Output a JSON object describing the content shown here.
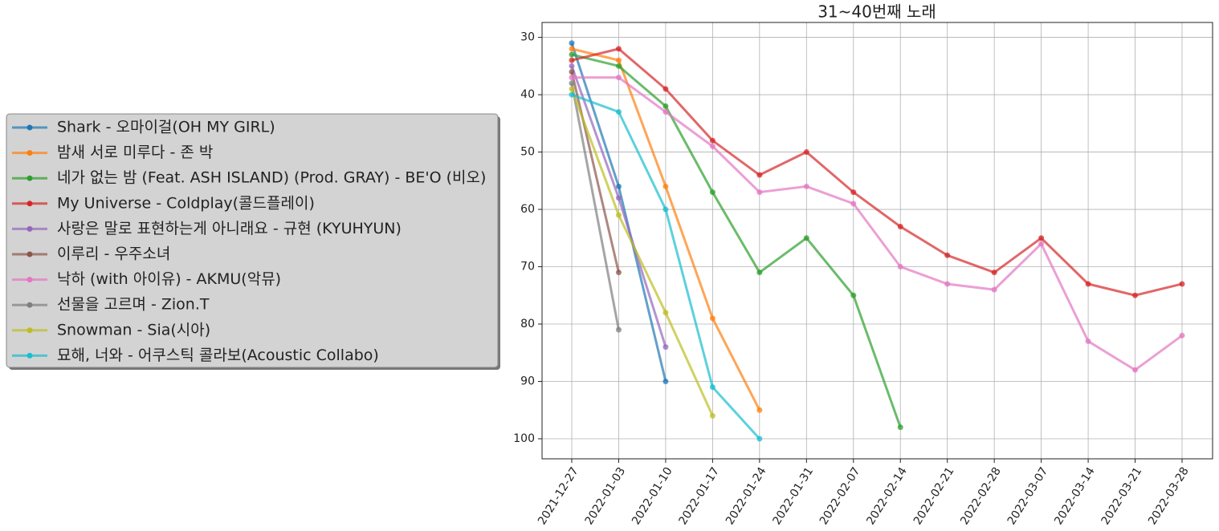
{
  "chart_data": {
    "type": "line",
    "title": "31~40번째 노래",
    "categories": [
      "2021-12-27",
      "2022-01-03",
      "2022-01-10",
      "2022-01-17",
      "2022-01-24",
      "2022-01-31",
      "2022-02-07",
      "2022-02-14",
      "2022-02-21",
      "2022-02-28",
      "2022-03-07",
      "2022-03-14",
      "2022-03-21",
      "2022-03-28"
    ],
    "series": [
      {
        "name": "Shark - 오마이걸(OH MY GIRL)",
        "color": "#1f77b4",
        "values": [
          31,
          56,
          90,
          null,
          null,
          null,
          null,
          null,
          null,
          null,
          null,
          null,
          null,
          null
        ]
      },
      {
        "name": "밤새 서로 미루다 - 존 박",
        "color": "#ff7f0e",
        "values": [
          32,
          34,
          56,
          79,
          95,
          null,
          null,
          null,
          null,
          null,
          null,
          null,
          null,
          null
        ]
      },
      {
        "name": "네가 없는 밤 (Feat. ASH ISLAND) (Prod. GRAY) - BE'O (비오)",
        "color": "#2ca02c",
        "values": [
          33,
          35,
          42,
          57,
          71,
          65,
          75,
          98,
          null,
          null,
          null,
          null,
          null,
          null
        ]
      },
      {
        "name": "My Universe - Coldplay(콜드플레이)",
        "color": "#d62728",
        "values": [
          34,
          32,
          39,
          48,
          54,
          50,
          57,
          63,
          68,
          71,
          65,
          73,
          75,
          73
        ]
      },
      {
        "name": "사랑은 말로 표현하는게 아니래요 - 규현 (KYUHYUN)",
        "color": "#9467bd",
        "values": [
          35,
          58,
          84,
          null,
          null,
          null,
          null,
          null,
          null,
          null,
          null,
          null,
          null,
          null
        ]
      },
      {
        "name": "이루리 - 우주소녀",
        "color": "#8c564b",
        "values": [
          36,
          71,
          null,
          null,
          null,
          null,
          null,
          null,
          null,
          null,
          null,
          null,
          null,
          null
        ]
      },
      {
        "name": "낙하 (with 아이유) - AKMU(악뮤)",
        "color": "#e377c2",
        "values": [
          37,
          37,
          43,
          49,
          57,
          56,
          59,
          70,
          73,
          74,
          66,
          83,
          88,
          82
        ]
      },
      {
        "name": "선물을 고르며 - Zion.T",
        "color": "#7f7f7f",
        "values": [
          38,
          81,
          null,
          null,
          null,
          null,
          null,
          null,
          null,
          null,
          null,
          null,
          null,
          null
        ]
      },
      {
        "name": "Snowman - Sia(시아)",
        "color": "#bcbd22",
        "values": [
          39,
          61,
          78,
          96,
          null,
          null,
          null,
          null,
          null,
          null,
          null,
          null,
          null,
          null
        ]
      },
      {
        "name": "묘해, 너와 - 어쿠스틱 콜라보(Acoustic Collabo)",
        "color": "#17becf",
        "values": [
          40,
          43,
          60,
          91,
          100,
          null,
          null,
          null,
          null,
          null,
          null,
          null,
          null,
          null
        ]
      }
    ],
    "ylim": [
      103.5,
      27.4
    ],
    "yticks": [
      30,
      40,
      50,
      60,
      70,
      80,
      90,
      100
    ],
    "grid": true,
    "legend": "left"
  }
}
